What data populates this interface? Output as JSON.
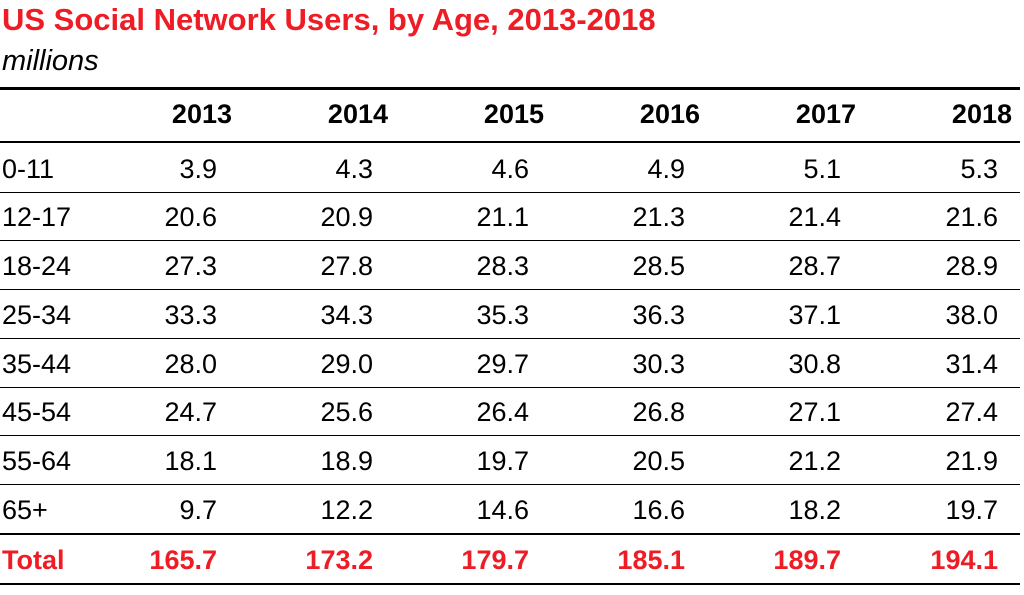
{
  "chart_data": {
    "type": "table",
    "title": "US Social Network Users, by Age, 2013-2018",
    "subtitle": "millions",
    "columns": [
      "2013",
      "2014",
      "2015",
      "2016",
      "2017",
      "2018"
    ],
    "rows": [
      {
        "label": "0-11",
        "values": [
          "3.9",
          "4.3",
          "4.6",
          "4.9",
          "5.1",
          "5.3"
        ]
      },
      {
        "label": "12-17",
        "values": [
          "20.6",
          "20.9",
          "21.1",
          "21.3",
          "21.4",
          "21.6"
        ]
      },
      {
        "label": "18-24",
        "values": [
          "27.3",
          "27.8",
          "28.3",
          "28.5",
          "28.7",
          "28.9"
        ]
      },
      {
        "label": "25-34",
        "values": [
          "33.3",
          "34.3",
          "35.3",
          "36.3",
          "37.1",
          "38.0"
        ]
      },
      {
        "label": "35-44",
        "values": [
          "28.0",
          "29.0",
          "29.7",
          "30.3",
          "30.8",
          "31.4"
        ]
      },
      {
        "label": "45-54",
        "values": [
          "24.7",
          "25.6",
          "26.4",
          "26.8",
          "27.1",
          "27.4"
        ]
      },
      {
        "label": "55-64",
        "values": [
          "18.1",
          "18.9",
          "19.7",
          "20.5",
          "21.2",
          "21.9"
        ]
      },
      {
        "label": "65+",
        "values": [
          "9.7",
          "12.2",
          "14.6",
          "16.6",
          "18.2",
          "19.7"
        ]
      }
    ],
    "total": {
      "label": "Total",
      "values": [
        "165.7",
        "173.2",
        "179.7",
        "185.1",
        "189.7",
        "194.1"
      ]
    },
    "accent_color": "#ee1c25"
  }
}
